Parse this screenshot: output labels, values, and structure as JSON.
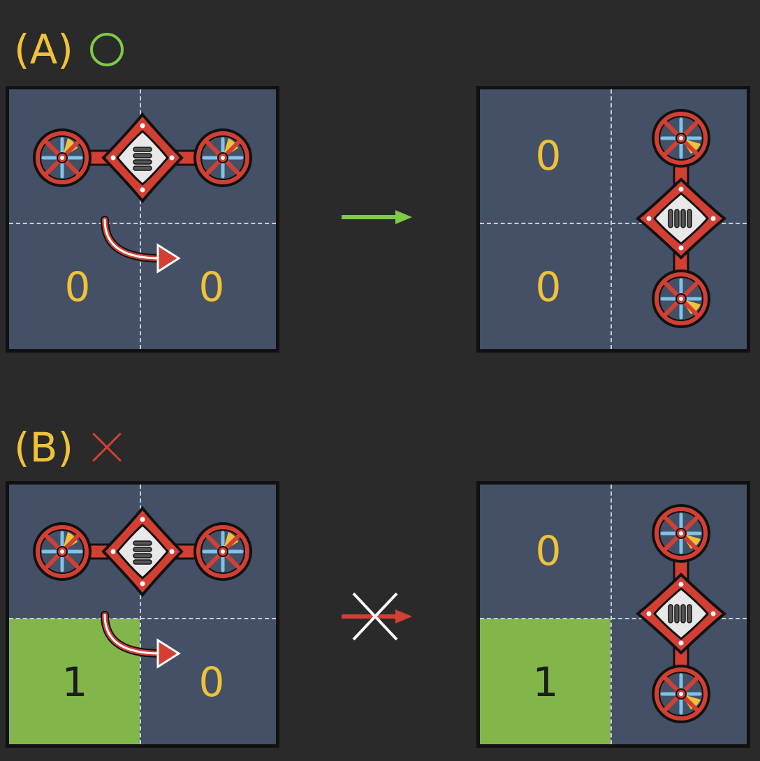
{
  "scenarios": [
    {
      "label": "(A)",
      "result_icon": "circle-icon",
      "result_color": "#7dcb48",
      "before": {
        "cells": [
          "",
          "",
          "0",
          "0"
        ],
        "filled": []
      },
      "transition_icon": "green-arrow-icon",
      "after": {
        "cells": [
          "0",
          "",
          "0",
          ""
        ],
        "filled": []
      }
    },
    {
      "label": "(B)",
      "result_icon": "cross-icon",
      "result_color": "#d43f34",
      "before": {
        "cells": [
          "",
          "",
          "1",
          "0"
        ],
        "filled": [
          "bottom-left"
        ]
      },
      "transition_icon": "blocked-red-arrow-icon",
      "after": {
        "cells": [
          "0",
          "",
          "1",
          ""
        ],
        "filled": [
          "bottom-left"
        ]
      }
    }
  ],
  "colors": {
    "background": "#2a2a2b",
    "board": "#435066",
    "filled_cell": "#82b54a",
    "number": "#f0c238",
    "drone_body": "#d43f34"
  }
}
